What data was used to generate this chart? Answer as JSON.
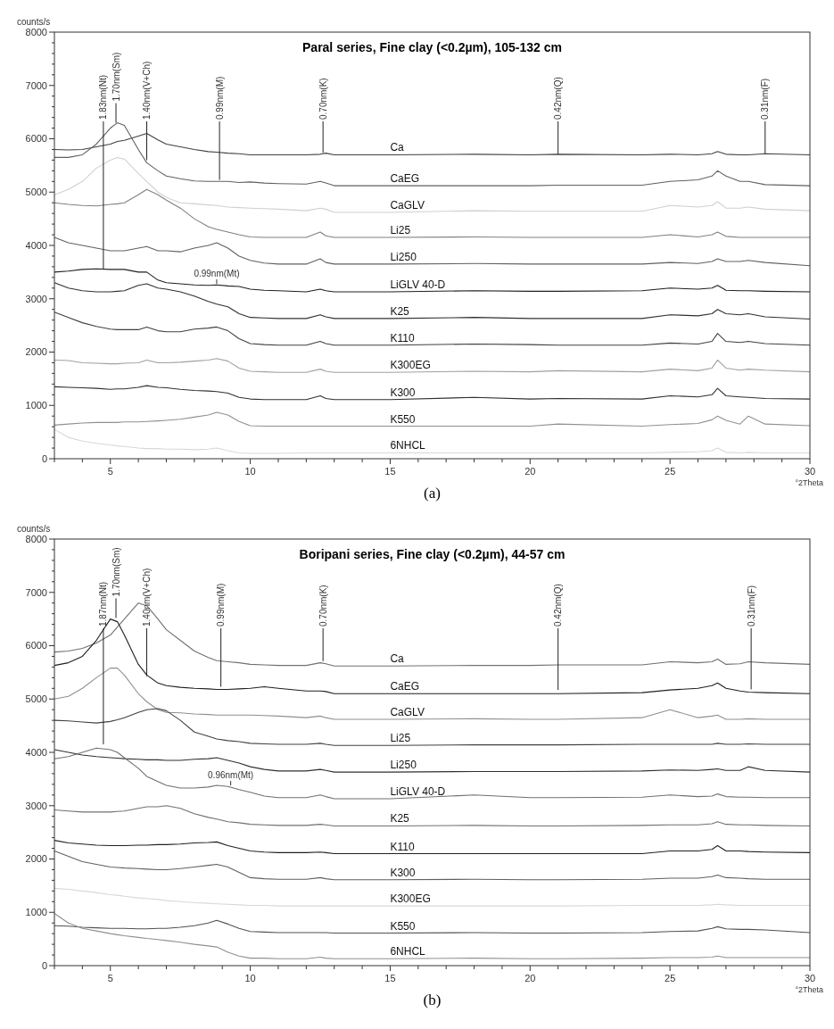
{
  "chart_data": [
    {
      "type": "line",
      "title": "Paral series, Fine clay (<0.2µm), 105-132 cm",
      "xlabel": "°2Theta",
      "ylabel": "counts/s",
      "xlim": [
        3,
        30
      ],
      "ylim": [
        0,
        8000
      ],
      "xticks": [
        {
          "value": 3,
          "label": null
        },
        {
          "value": 4,
          "label": null
        },
        5,
        {
          "value": 6,
          "label": null
        },
        {
          "value": 7,
          "label": null
        },
        {
          "value": 8,
          "label": null
        },
        {
          "value": 9,
          "label": null
        },
        10,
        {
          "value": 11,
          "label": null
        },
        {
          "value": 12,
          "label": null
        },
        {
          "value": 13,
          "label": null
        },
        {
          "value": 14,
          "label": null
        },
        15,
        {
          "value": 16,
          "label": null
        },
        {
          "value": 17,
          "label": null
        },
        {
          "value": 18,
          "label": null
        },
        {
          "value": 19,
          "label": null
        },
        20,
        {
          "value": 21,
          "label": null
        },
        {
          "value": 22,
          "label": null
        },
        {
          "value": 23,
          "label": null
        },
        {
          "value": 24,
          "label": null
        },
        25,
        {
          "value": 26,
          "label": null
        },
        {
          "value": 27,
          "label": null
        },
        {
          "value": 28,
          "label": null
        },
        {
          "value": 29,
          "label": null
        },
        30
      ],
      "yticks": [
        0,
        {
          "value": 200,
          "label": null
        },
        {
          "value": 400,
          "label": null
        },
        {
          "value": 600,
          "label": null
        },
        {
          "value": 800,
          "label": null
        },
        1000,
        {
          "value": 1200,
          "label": null
        },
        {
          "value": 1400,
          "label": null
        },
        {
          "value": 1600,
          "label": null
        },
        {
          "value": 1800,
          "label": null
        },
        2000,
        {
          "value": 2200,
          "label": null
        },
        {
          "value": 2400,
          "label": null
        },
        {
          "value": 2600,
          "label": null
        },
        {
          "value": 2800,
          "label": null
        },
        3000,
        {
          "value": 3200,
          "label": null
        },
        {
          "value": 3400,
          "label": null
        },
        {
          "value": 3600,
          "label": null
        },
        {
          "value": 3800,
          "label": null
        },
        4000,
        {
          "value": 4200,
          "label": null
        },
        {
          "value": 4400,
          "label": null
        },
        {
          "value": 4600,
          "label": null
        },
        {
          "value": 4800,
          "label": null
        },
        5000,
        {
          "value": 5200,
          "label": null
        },
        {
          "value": 5400,
          "label": null
        },
        {
          "value": 5600,
          "label": null
        },
        {
          "value": 5800,
          "label": null
        },
        6000,
        {
          "value": 6200,
          "label": null
        },
        {
          "value": 6400,
          "label": null
        },
        {
          "value": 6600,
          "label": null
        },
        {
          "value": 6800,
          "label": null
        },
        7000,
        {
          "value": 7200,
          "label": null
        },
        {
          "value": 7400,
          "label": null
        },
        {
          "value": 7600,
          "label": null
        },
        {
          "value": 7800,
          "label": null
        },
        8000
      ],
      "grid": false,
      "marker": "none",
      "line_style": "solid",
      "x": [
        3,
        3.5,
        4,
        4.5,
        5,
        5.25,
        5.5,
        6,
        6.3,
        6.7,
        7,
        7.5,
        8,
        8.5,
        8.8,
        9.2,
        9.6,
        10,
        10.5,
        11,
        12,
        12.5,
        12.7,
        13,
        15,
        18,
        20,
        21,
        24,
        25,
        26,
        26.5,
        26.7,
        27,
        27.5,
        27.8,
        28.4,
        30
      ],
      "series": [
        {
          "name": "Ca",
          "color": "#404040",
          "values": [
            5800,
            5790,
            5800,
            5850,
            5900,
            5950,
            5970,
            6050,
            6100,
            5980,
            5900,
            5850,
            5800,
            5760,
            5750,
            5730,
            5720,
            5700,
            5700,
            5700,
            5700,
            5710,
            5730,
            5700,
            5700,
            5710,
            5700,
            5710,
            5700,
            5710,
            5700,
            5720,
            5760,
            5710,
            5700,
            5700,
            5720,
            5700
          ]
        },
        {
          "name": "CaEG",
          "color": "#606060",
          "values": [
            5650,
            5650,
            5700,
            5900,
            6200,
            6300,
            6250,
            5800,
            5550,
            5400,
            5300,
            5250,
            5210,
            5200,
            5200,
            5200,
            5180,
            5190,
            5170,
            5160,
            5150,
            5200,
            5170,
            5120,
            5120,
            5120,
            5120,
            5130,
            5130,
            5200,
            5230,
            5300,
            5400,
            5300,
            5200,
            5200,
            5140,
            5120
          ]
        },
        {
          "name": "CaGLV",
          "color": "#d0d0d0",
          "values": [
            4950,
            5050,
            5200,
            5450,
            5600,
            5650,
            5620,
            5350,
            5200,
            5000,
            4900,
            4800,
            4780,
            4760,
            4750,
            4720,
            4710,
            4700,
            4690,
            4680,
            4650,
            4700,
            4680,
            4620,
            4620,
            4650,
            4640,
            4640,
            4640,
            4750,
            4720,
            4750,
            4820,
            4700,
            4700,
            4720,
            4680,
            4650
          ]
        },
        {
          "name": "Li25",
          "color": "#808080",
          "values": [
            4800,
            4770,
            4750,
            4740,
            4770,
            4780,
            4800,
            4950,
            5050,
            4950,
            4850,
            4700,
            4500,
            4350,
            4300,
            4250,
            4200,
            4160,
            4150,
            4150,
            4150,
            4250,
            4180,
            4150,
            4150,
            4160,
            4150,
            4150,
            4150,
            4200,
            4160,
            4200,
            4250,
            4170,
            4150,
            4150,
            4150,
            4150
          ]
        },
        {
          "name": "Li250",
          "color": "#606060",
          "values": [
            4150,
            4050,
            4000,
            3950,
            3900,
            3900,
            3900,
            3950,
            3980,
            3900,
            3900,
            3880,
            3950,
            4000,
            4050,
            3950,
            3800,
            3720,
            3670,
            3650,
            3650,
            3750,
            3680,
            3650,
            3650,
            3660,
            3650,
            3650,
            3650,
            3680,
            3660,
            3700,
            3750,
            3700,
            3700,
            3720,
            3680,
            3620
          ]
        },
        {
          "name": "LiGLV 40-D",
          "color": "#202020",
          "values": [
            3500,
            3520,
            3550,
            3560,
            3550,
            3550,
            3550,
            3500,
            3500,
            3350,
            3300,
            3280,
            3260,
            3250,
            3260,
            3240,
            3230,
            3180,
            3160,
            3150,
            3130,
            3180,
            3150,
            3130,
            3130,
            3150,
            3140,
            3140,
            3150,
            3200,
            3180,
            3200,
            3250,
            3160,
            3150,
            3150,
            3140,
            3130
          ]
        },
        {
          "name": "K25",
          "color": "#303030",
          "values": [
            3300,
            3200,
            3150,
            3130,
            3130,
            3140,
            3150,
            3250,
            3280,
            3200,
            3180,
            3130,
            3050,
            2950,
            2900,
            2850,
            2720,
            2650,
            2640,
            2630,
            2630,
            2700,
            2660,
            2630,
            2630,
            2650,
            2630,
            2630,
            2630,
            2700,
            2680,
            2720,
            2800,
            2720,
            2700,
            2720,
            2660,
            2620
          ]
        },
        {
          "name": "K110",
          "color": "#404040",
          "values": [
            2750,
            2650,
            2550,
            2480,
            2430,
            2420,
            2420,
            2420,
            2470,
            2400,
            2380,
            2380,
            2430,
            2450,
            2470,
            2400,
            2250,
            2160,
            2140,
            2130,
            2130,
            2200,
            2160,
            2130,
            2130,
            2150,
            2140,
            2130,
            2130,
            2170,
            2150,
            2200,
            2350,
            2200,
            2180,
            2200,
            2160,
            2130
          ]
        },
        {
          "name": "K300EG",
          "color": "#a0a0a0",
          "values": [
            1850,
            1840,
            1800,
            1790,
            1780,
            1780,
            1790,
            1800,
            1850,
            1800,
            1800,
            1810,
            1830,
            1850,
            1880,
            1830,
            1700,
            1640,
            1630,
            1620,
            1620,
            1680,
            1640,
            1620,
            1620,
            1640,
            1630,
            1650,
            1630,
            1680,
            1650,
            1700,
            1850,
            1700,
            1660,
            1680,
            1660,
            1630
          ]
        },
        {
          "name": "K300",
          "color": "#303030",
          "values": [
            1350,
            1340,
            1330,
            1320,
            1300,
            1310,
            1310,
            1340,
            1370,
            1340,
            1330,
            1300,
            1280,
            1270,
            1260,
            1230,
            1150,
            1120,
            1110,
            1110,
            1110,
            1180,
            1130,
            1110,
            1110,
            1150,
            1120,
            1130,
            1120,
            1180,
            1160,
            1200,
            1320,
            1180,
            1160,
            1150,
            1130,
            1120
          ]
        },
        {
          "name": "K550",
          "color": "#909090",
          "values": [
            630,
            650,
            670,
            680,
            680,
            680,
            690,
            690,
            700,
            710,
            720,
            740,
            780,
            820,
            870,
            820,
            700,
            620,
            610,
            610,
            610,
            610,
            610,
            610,
            610,
            610,
            610,
            650,
            610,
            640,
            660,
            730,
            800,
            720,
            650,
            800,
            650,
            620
          ]
        },
        {
          "name": "6NHCL",
          "color": "#d8d8d8",
          "values": [
            550,
            400,
            330,
            290,
            260,
            240,
            230,
            200,
            190,
            190,
            180,
            180,
            170,
            180,
            200,
            150,
            110,
            100,
            100,
            100,
            110,
            110,
            110,
            110,
            110,
            110,
            110,
            110,
            110,
            120,
            130,
            150,
            200,
            120,
            110,
            120,
            110,
            110
          ]
        }
      ],
      "annotations": [
        {
          "text": "1.83nm(Nt)",
          "x": 4.75,
          "y": 3550
        },
        {
          "text": "1.70nm(Sm)",
          "x": 5.2,
          "y": 6300
        },
        {
          "text": "1.40nm(V+Ch)",
          "x": 6.3,
          "y": 5600
        },
        {
          "text": "0.99nm(M)",
          "x": 8.9,
          "y": 5230
        },
        {
          "text": "0.70nm(K)",
          "x": 12.6,
          "y": 5740
        },
        {
          "text": "0.42nm(Q)",
          "x": 21.0,
          "y": 5710
        },
        {
          "text": "0.31nm(F)",
          "x": 28.4,
          "y": 5720
        },
        {
          "text": "0.99nm(Mt)",
          "x": 8.8,
          "y": 3280
        },
        "(a)"
      ]
    },
    {
      "type": "line",
      "title": "Boripani series, Fine clay (<0.2µm), 44-57 cm",
      "xlabel": "°2Theta",
      "ylabel": "counts/s",
      "xlim": [
        3,
        30
      ],
      "ylim": [
        0,
        8000
      ],
      "xticks": [
        {
          "value": 3,
          "label": null
        },
        {
          "value": 4,
          "label": null
        },
        5,
        {
          "value": 6,
          "label": null
        },
        {
          "value": 7,
          "label": null
        },
        {
          "value": 8,
          "label": null
        },
        {
          "value": 9,
          "label": null
        },
        10,
        {
          "value": 11,
          "label": null
        },
        {
          "value": 12,
          "label": null
        },
        {
          "value": 13,
          "label": null
        },
        {
          "value": 14,
          "label": null
        },
        15,
        {
          "value": 16,
          "label": null
        },
        {
          "value": 17,
          "label": null
        },
        {
          "value": 18,
          "label": null
        },
        {
          "value": 19,
          "label": null
        },
        20,
        {
          "value": 21,
          "label": null
        },
        {
          "value": 22,
          "label": null
        },
        {
          "value": 23,
          "label": null
        },
        {
          "value": 24,
          "label": null
        },
        25,
        {
          "value": 26,
          "label": null
        },
        {
          "value": 27,
          "label": null
        },
        {
          "value": 28,
          "label": null
        },
        {
          "value": 29,
          "label": null
        },
        30
      ],
      "yticks": [
        0,
        {
          "value": 200,
          "label": null
        },
        {
          "value": 400,
          "label": null
        },
        {
          "value": 600,
          "label": null
        },
        {
          "value": 800,
          "label": null
        },
        1000,
        {
          "value": 1200,
          "label": null
        },
        {
          "value": 1400,
          "label": null
        },
        {
          "value": 1600,
          "label": null
        },
        {
          "value": 1800,
          "label": null
        },
        2000,
        {
          "value": 2200,
          "label": null
        },
        {
          "value": 2400,
          "label": null
        },
        {
          "value": 2600,
          "label": null
        },
        {
          "value": 2800,
          "label": null
        },
        3000,
        {
          "value": 3200,
          "label": null
        },
        {
          "value": 3400,
          "label": null
        },
        {
          "value": 3600,
          "label": null
        },
        {
          "value": 3800,
          "label": null
        },
        4000,
        {
          "value": 4200,
          "label": null
        },
        {
          "value": 4400,
          "label": null
        },
        {
          "value": 4600,
          "label": null
        },
        {
          "value": 4800,
          "label": null
        },
        5000,
        {
          "value": 5200,
          "label": null
        },
        {
          "value": 5400,
          "label": null
        },
        {
          "value": 5600,
          "label": null
        },
        {
          "value": 5800,
          "label": null
        },
        6000,
        {
          "value": 6200,
          "label": null
        },
        {
          "value": 6400,
          "label": null
        },
        {
          "value": 6600,
          "label": null
        },
        {
          "value": 6800,
          "label": null
        },
        7000,
        {
          "value": 7200,
          "label": null
        },
        {
          "value": 7400,
          "label": null
        },
        {
          "value": 7600,
          "label": null
        },
        {
          "value": 7800,
          "label": null
        },
        8000
      ],
      "grid": false,
      "marker": "none",
      "line_style": "solid",
      "x": [
        3,
        3.5,
        4,
        4.5,
        5,
        5.25,
        5.5,
        6,
        6.3,
        6.7,
        7,
        7.5,
        8,
        8.5,
        8.8,
        9.2,
        9.6,
        10,
        10.5,
        11,
        12,
        12.5,
        12.7,
        13,
        15,
        18,
        20,
        21,
        24,
        25,
        26,
        26.5,
        26.7,
        27,
        27.5,
        27.8,
        28.4,
        30
      ],
      "series": [
        {
          "name": "Ca",
          "color": "#707070",
          "values": [
            5880,
            5900,
            5950,
            6050,
            6200,
            6350,
            6500,
            6800,
            6750,
            6500,
            6300,
            6100,
            5900,
            5780,
            5720,
            5700,
            5680,
            5650,
            5640,
            5630,
            5630,
            5680,
            5660,
            5620,
            5620,
            5630,
            5630,
            5640,
            5640,
            5700,
            5680,
            5700,
            5750,
            5650,
            5660,
            5700,
            5680,
            5650
          ]
        },
        {
          "name": "CaEG",
          "color": "#202020",
          "values": [
            5630,
            5680,
            5800,
            6100,
            6500,
            6450,
            6200,
            5650,
            5450,
            5300,
            5250,
            5220,
            5200,
            5190,
            5180,
            5180,
            5190,
            5200,
            5230,
            5200,
            5150,
            5150,
            5140,
            5100,
            5100,
            5100,
            5100,
            5100,
            5120,
            5170,
            5200,
            5250,
            5300,
            5200,
            5150,
            5130,
            5120,
            5100
          ]
        },
        {
          "name": "CaGLV",
          "color": "#909090",
          "values": [
            5000,
            5050,
            5200,
            5400,
            5580,
            5580,
            5450,
            5100,
            4950,
            4800,
            4750,
            4740,
            4720,
            4710,
            4700,
            4700,
            4700,
            4700,
            4690,
            4680,
            4650,
            4680,
            4650,
            4620,
            4620,
            4630,
            4620,
            4620,
            4650,
            4800,
            4650,
            4680,
            4700,
            4620,
            4620,
            4630,
            4620,
            4620
          ]
        },
        {
          "name": "Li25",
          "color": "#404040",
          "values": [
            4600,
            4590,
            4570,
            4550,
            4580,
            4610,
            4650,
            4750,
            4800,
            4820,
            4780,
            4600,
            4380,
            4300,
            4250,
            4220,
            4200,
            4170,
            4160,
            4150,
            4150,
            4170,
            4150,
            4130,
            4130,
            4140,
            4140,
            4140,
            4150,
            4150,
            4150,
            4150,
            4170,
            4150,
            4150,
            4160,
            4150,
            4150
          ]
        },
        {
          "name": "Li250",
          "color": "#303030",
          "values": [
            4050,
            4000,
            3950,
            3920,
            3900,
            3890,
            3880,
            3870,
            3860,
            3860,
            3850,
            3850,
            3870,
            3880,
            3900,
            3850,
            3800,
            3730,
            3680,
            3650,
            3650,
            3680,
            3660,
            3630,
            3630,
            3640,
            3640,
            3640,
            3650,
            3670,
            3660,
            3680,
            3690,
            3660,
            3660,
            3730,
            3660,
            3630
          ]
        },
        {
          "name": "LiGLV 40-D",
          "color": "#707070",
          "values": [
            3880,
            3920,
            4000,
            4080,
            4050,
            4000,
            3900,
            3700,
            3550,
            3450,
            3380,
            3330,
            3330,
            3350,
            3380,
            3360,
            3300,
            3250,
            3180,
            3150,
            3150,
            3200,
            3170,
            3130,
            3130,
            3200,
            3150,
            3150,
            3160,
            3200,
            3170,
            3180,
            3220,
            3170,
            3160,
            3160,
            3150,
            3150
          ]
        },
        {
          "name": "K25",
          "color": "#707070",
          "values": [
            2920,
            2900,
            2880,
            2880,
            2880,
            2890,
            2900,
            2950,
            2980,
            2980,
            3000,
            2950,
            2850,
            2780,
            2750,
            2700,
            2680,
            2650,
            2640,
            2630,
            2630,
            2650,
            2640,
            2620,
            2620,
            2630,
            2620,
            2620,
            2630,
            2640,
            2640,
            2660,
            2700,
            2650,
            2640,
            2640,
            2630,
            2620
          ]
        },
        {
          "name": "K110",
          "color": "#202020",
          "values": [
            2350,
            2300,
            2280,
            2260,
            2250,
            2250,
            2250,
            2260,
            2260,
            2270,
            2270,
            2280,
            2300,
            2310,
            2320,
            2250,
            2200,
            2150,
            2130,
            2120,
            2120,
            2130,
            2120,
            2100,
            2100,
            2100,
            2100,
            2100,
            2100,
            2150,
            2150,
            2180,
            2250,
            2150,
            2150,
            2140,
            2130,
            2120
          ]
        },
        {
          "name": "K300",
          "color": "#606060",
          "values": [
            2150,
            2050,
            1950,
            1900,
            1850,
            1840,
            1830,
            1820,
            1810,
            1800,
            1800,
            1820,
            1850,
            1880,
            1900,
            1850,
            1750,
            1650,
            1630,
            1620,
            1620,
            1650,
            1630,
            1610,
            1610,
            1620,
            1610,
            1610,
            1620,
            1640,
            1640,
            1670,
            1700,
            1650,
            1640,
            1630,
            1620,
            1620
          ]
        },
        {
          "name": "K300EG",
          "color": "#d8d8d8",
          "values": [
            1450,
            1430,
            1400,
            1370,
            1330,
            1320,
            1300,
            1270,
            1260,
            1240,
            1220,
            1200,
            1180,
            1170,
            1160,
            1150,
            1140,
            1130,
            1130,
            1120,
            1120,
            1120,
            1120,
            1120,
            1120,
            1120,
            1120,
            1120,
            1130,
            1130,
            1130,
            1140,
            1150,
            1140,
            1130,
            1130,
            1130,
            1130
          ]
        },
        {
          "name": "K550",
          "color": "#505050",
          "values": [
            750,
            740,
            720,
            710,
            700,
            700,
            700,
            690,
            690,
            700,
            700,
            720,
            750,
            800,
            850,
            780,
            700,
            640,
            630,
            620,
            620,
            620,
            620,
            610,
            610,
            620,
            610,
            610,
            620,
            640,
            650,
            700,
            730,
            690,
            680,
            680,
            670,
            620
          ]
        },
        {
          "name": "6NHCL",
          "color": "#909090",
          "values": [
            980,
            800,
            700,
            650,
            600,
            580,
            560,
            530,
            510,
            490,
            470,
            440,
            400,
            370,
            350,
            250,
            180,
            140,
            140,
            130,
            130,
            160,
            140,
            130,
            130,
            140,
            130,
            130,
            140,
            150,
            150,
            160,
            180,
            150,
            150,
            150,
            150,
            150
          ]
        }
      ],
      "annotations": [
        {
          "text": "1.87nm(Nt)",
          "x": 4.75,
          "y": 4150
        },
        {
          "text": "1.70nm(Sm)",
          "x": 5.2,
          "y": 6520
        },
        {
          "text": "1.40nm(V+Ch)",
          "x": 6.3,
          "y": 5430
        },
        {
          "text": "0.99nm(M)",
          "x": 8.95,
          "y": 5230
        },
        {
          "text": "0.70nm(K)",
          "x": 12.6,
          "y": 5710
        },
        {
          "text": "0.42nm(Q)",
          "x": 21.0,
          "y": 5170
        },
        {
          "text": "0.31nm(F)",
          "x": 27.9,
          "y": 5180
        },
        {
          "text": "0.96nm(Mt)",
          "x": 9.3,
          "y": 3380
        },
        "(b)"
      ]
    }
  ]
}
